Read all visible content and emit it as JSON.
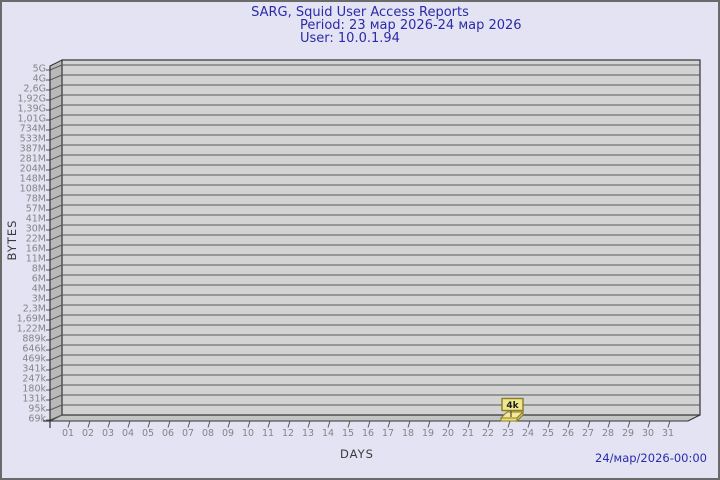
{
  "header": {
    "title": "SARG, Squid User Access Reports",
    "period": "Period: 23 мар 2026-24 мар 2026",
    "user": "User: 10.0.1.94",
    "color": "#2b2ba8"
  },
  "footer": {
    "timestamp": "24/мар/2026-00:00"
  },
  "chart_data": {
    "type": "bar",
    "title": "SARG, Squid User Access Reports",
    "subtitle": "Period: 23 мар 2026-24 мар 2026",
    "user_line": "User: 10.0.1.94",
    "xlabel": "DAYS",
    "ylabel": "BYTES",
    "x_ticks": [
      "01",
      "02",
      "03",
      "04",
      "05",
      "06",
      "07",
      "08",
      "09",
      "10",
      "11",
      "12",
      "13",
      "14",
      "15",
      "16",
      "17",
      "18",
      "19",
      "20",
      "21",
      "22",
      "23",
      "24",
      "25",
      "26",
      "27",
      "28",
      "29",
      "30",
      "31"
    ],
    "y_ticks": [
      "5G",
      "4G",
      "2,6G",
      "1,92G",
      "1,39G",
      "1,01G",
      "734M",
      "533M",
      "387M",
      "281M",
      "204M",
      "148M",
      "108M",
      "78M",
      "57M",
      "41M",
      "30M",
      "22M",
      "16M",
      "11M",
      "8M",
      "6M",
      "4M",
      "3M",
      "2,3M",
      "1,69M",
      "1,22M",
      "889k",
      "646k",
      "469k",
      "341k",
      "247k",
      "180k",
      "131k",
      "95k",
      "69k"
    ],
    "bars": [
      {
        "x": "23",
        "value_label": "4k"
      }
    ],
    "legend": null,
    "grid": "horizontal",
    "style_3d": true,
    "colors": {
      "background": "#e3e3f4",
      "face": "#d3d3d3",
      "wall": "#b9b9b9",
      "floor": "#c4c4c4",
      "grid": "#5a5a5a",
      "edge": "#333333",
      "tick_label": "#858585",
      "axis_title": "#3a3a3a",
      "bar_fill": "#f0e072",
      "bar_top": "#f4e89a",
      "bar_side": "#dcc95e",
      "bar_edge": "#8a7d2a",
      "flag_fill": "#f0e68c",
      "flag_border": "#8a7d2a",
      "flag_text": "#1a1a1a",
      "pointer": "#4a4a3a"
    }
  }
}
